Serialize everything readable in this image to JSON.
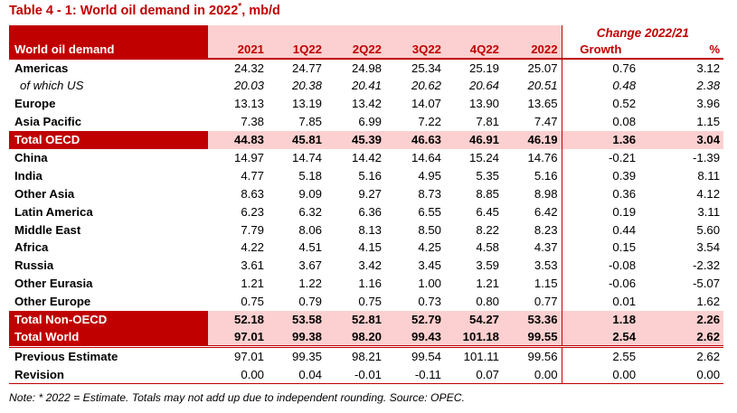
{
  "title": "Table 4 - 1: World oil demand in 2022",
  "title_mark": "*",
  "title_unit": ", mb/d",
  "header": {
    "change_label": "Change 2022/21",
    "row_label": "World oil demand",
    "columns": [
      "2021",
      "1Q22",
      "2Q22",
      "3Q22",
      "4Q22",
      "2022",
      "Growth",
      "%"
    ]
  },
  "rows": [
    {
      "label": "Americas",
      "kind": "normal",
      "values": [
        "24.32",
        "24.77",
        "24.98",
        "25.34",
        "25.19",
        "25.07",
        "0.76",
        "3.12"
      ]
    },
    {
      "label": "of which US",
      "kind": "sub",
      "values": [
        "20.03",
        "20.38",
        "20.41",
        "20.62",
        "20.64",
        "20.51",
        "0.48",
        "2.38"
      ]
    },
    {
      "label": "Europe",
      "kind": "normal",
      "values": [
        "13.13",
        "13.19",
        "13.42",
        "14.07",
        "13.90",
        "13.65",
        "0.52",
        "3.96"
      ]
    },
    {
      "label": "Asia Pacific",
      "kind": "normal",
      "values": [
        "7.38",
        "7.85",
        "6.99",
        "7.22",
        "7.81",
        "7.47",
        "0.08",
        "1.15"
      ]
    },
    {
      "label": "Total OECD",
      "kind": "total",
      "values": [
        "44.83",
        "45.81",
        "45.39",
        "46.63",
        "46.91",
        "46.19",
        "1.36",
        "3.04"
      ]
    },
    {
      "label": "China",
      "kind": "normal",
      "values": [
        "14.97",
        "14.74",
        "14.42",
        "14.64",
        "15.24",
        "14.76",
        "-0.21",
        "-1.39"
      ]
    },
    {
      "label": "India",
      "kind": "normal",
      "values": [
        "4.77",
        "5.18",
        "5.16",
        "4.95",
        "5.35",
        "5.16",
        "0.39",
        "8.11"
      ]
    },
    {
      "label": "Other Asia",
      "kind": "normal",
      "values": [
        "8.63",
        "9.09",
        "9.27",
        "8.73",
        "8.85",
        "8.98",
        "0.36",
        "4.12"
      ]
    },
    {
      "label": "Latin America",
      "kind": "normal",
      "values": [
        "6.23",
        "6.32",
        "6.36",
        "6.55",
        "6.45",
        "6.42",
        "0.19",
        "3.11"
      ]
    },
    {
      "label": "Middle East",
      "kind": "normal",
      "values": [
        "7.79",
        "8.06",
        "8.13",
        "8.50",
        "8.22",
        "8.23",
        "0.44",
        "5.60"
      ]
    },
    {
      "label": "Africa",
      "kind": "normal",
      "values": [
        "4.22",
        "4.51",
        "4.15",
        "4.25",
        "4.58",
        "4.37",
        "0.15",
        "3.54"
      ]
    },
    {
      "label": "Russia",
      "kind": "normal",
      "values": [
        "3.61",
        "3.67",
        "3.42",
        "3.45",
        "3.59",
        "3.53",
        "-0.08",
        "-2.32"
      ]
    },
    {
      "label": "Other Eurasia",
      "kind": "normal",
      "values": [
        "1.21",
        "1.22",
        "1.16",
        "1.00",
        "1.21",
        "1.15",
        "-0.06",
        "-5.07"
      ]
    },
    {
      "label": "Other Europe",
      "kind": "normal",
      "values": [
        "0.75",
        "0.79",
        "0.75",
        "0.73",
        "0.80",
        "0.77",
        "0.01",
        "1.62"
      ]
    },
    {
      "label": "Total Non-OECD",
      "kind": "total",
      "values": [
        "52.18",
        "53.58",
        "52.81",
        "52.79",
        "54.27",
        "53.36",
        "1.18",
        "2.26"
      ]
    },
    {
      "label": "Total World",
      "kind": "total",
      "values": [
        "97.01",
        "99.38",
        "98.20",
        "99.43",
        "101.18",
        "99.55",
        "2.54",
        "2.62"
      ]
    },
    {
      "label": "Previous Estimate",
      "kind": "normal",
      "values": [
        "97.01",
        "99.35",
        "98.21",
        "99.54",
        "101.11",
        "99.56",
        "2.55",
        "2.62"
      ]
    },
    {
      "label": "Revision",
      "kind": "normal",
      "values": [
        "0.00",
        "0.04",
        "-0.01",
        "-0.11",
        "0.07",
        "0.00",
        "0.00",
        "0.00"
      ]
    }
  ],
  "note": "Note: * 2022 = Estimate. Totals may not add up due to independent rounding. Source: OPEC.",
  "colors": {
    "accent": "#c00000",
    "highlight": "#fcd0d0"
  }
}
